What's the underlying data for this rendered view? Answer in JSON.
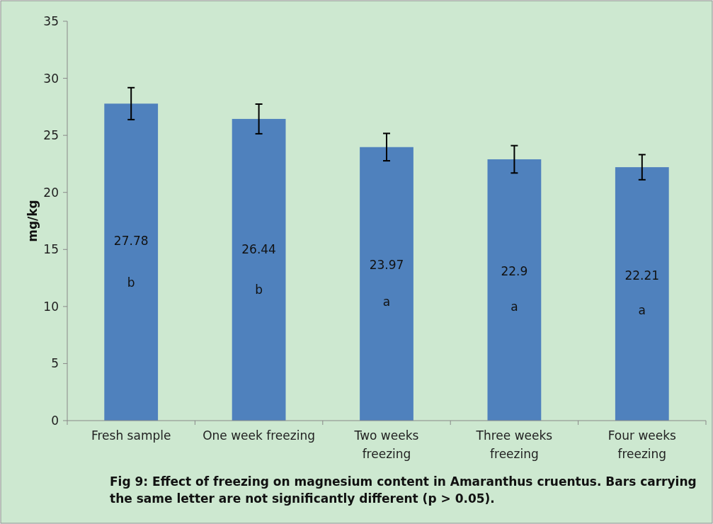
{
  "chart_data": {
    "type": "bar",
    "ylabel": "mg/kg",
    "categories": [
      "Fresh sample",
      "One week freezing",
      "Two weeks freezing",
      "Three weeks freezing",
      "Four weeks freezing"
    ],
    "values": [
      27.78,
      26.44,
      23.97,
      22.9,
      22.21
    ],
    "errors": [
      1.4,
      1.3,
      1.2,
      1.2,
      1.1
    ],
    "color": "#4f81bd",
    "data_labels": true,
    "ylim": [
      0,
      35
    ],
    "yticks": [
      0,
      5,
      10,
      15,
      20,
      25,
      30,
      35
    ],
    "grid": false,
    "annotations": [
      "b",
      "b",
      "a",
      "a",
      "a",
      "Fig 9: Effect of freezing on magnesium content in Amaranthus cruentus. Bars carrying the same letter are not significantly different (p > 0.05)."
    ]
  }
}
